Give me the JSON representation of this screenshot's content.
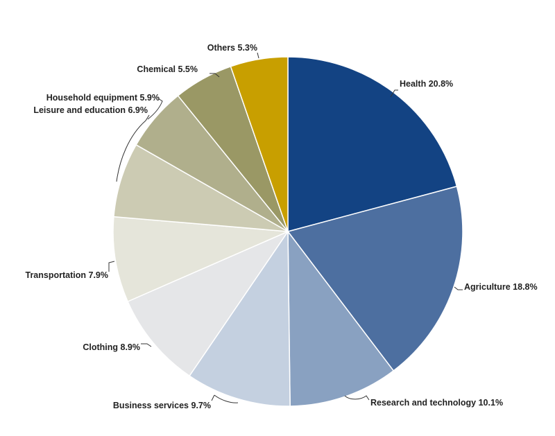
{
  "chart_data": {
    "type": "pie",
    "title": "",
    "start_angle": "12 o'clock",
    "direction": "clockwise",
    "slices": [
      {
        "label": "Health",
        "value": 20.8,
        "value_label": "20.8%",
        "color": "#134383"
      },
      {
        "label": "Agriculture",
        "value": 18.8,
        "value_label": "18.8%",
        "color": "#4d6fa0"
      },
      {
        "label": "Research and technology",
        "value": 10.1,
        "value_label": "10.1%",
        "color": "#89a1c1"
      },
      {
        "label": "Business services",
        "value": 9.7,
        "value_label": "9.7%",
        "color": "#c4d0e0"
      },
      {
        "label": "Clothing",
        "value": 8.9,
        "value_label": "8.9%",
        "color": "#e5e6e8"
      },
      {
        "label": "Transportation",
        "value": 7.9,
        "value_label": "7.9%",
        "color": "#e5e5da"
      },
      {
        "label": "Leisure and education",
        "value": 6.9,
        "value_label": "6.9%",
        "color": "#cccbb3"
      },
      {
        "label": "Household equipment",
        "value": 5.9,
        "value_label": "5.9%",
        "color": "#b0af8c"
      },
      {
        "label": "Chemical",
        "value": 5.5,
        "value_label": "5.5%",
        "color": "#9a9865"
      },
      {
        "label": "Others",
        "value": 5.3,
        "value_label": "5.3%",
        "color": "#c89f00"
      }
    ]
  }
}
